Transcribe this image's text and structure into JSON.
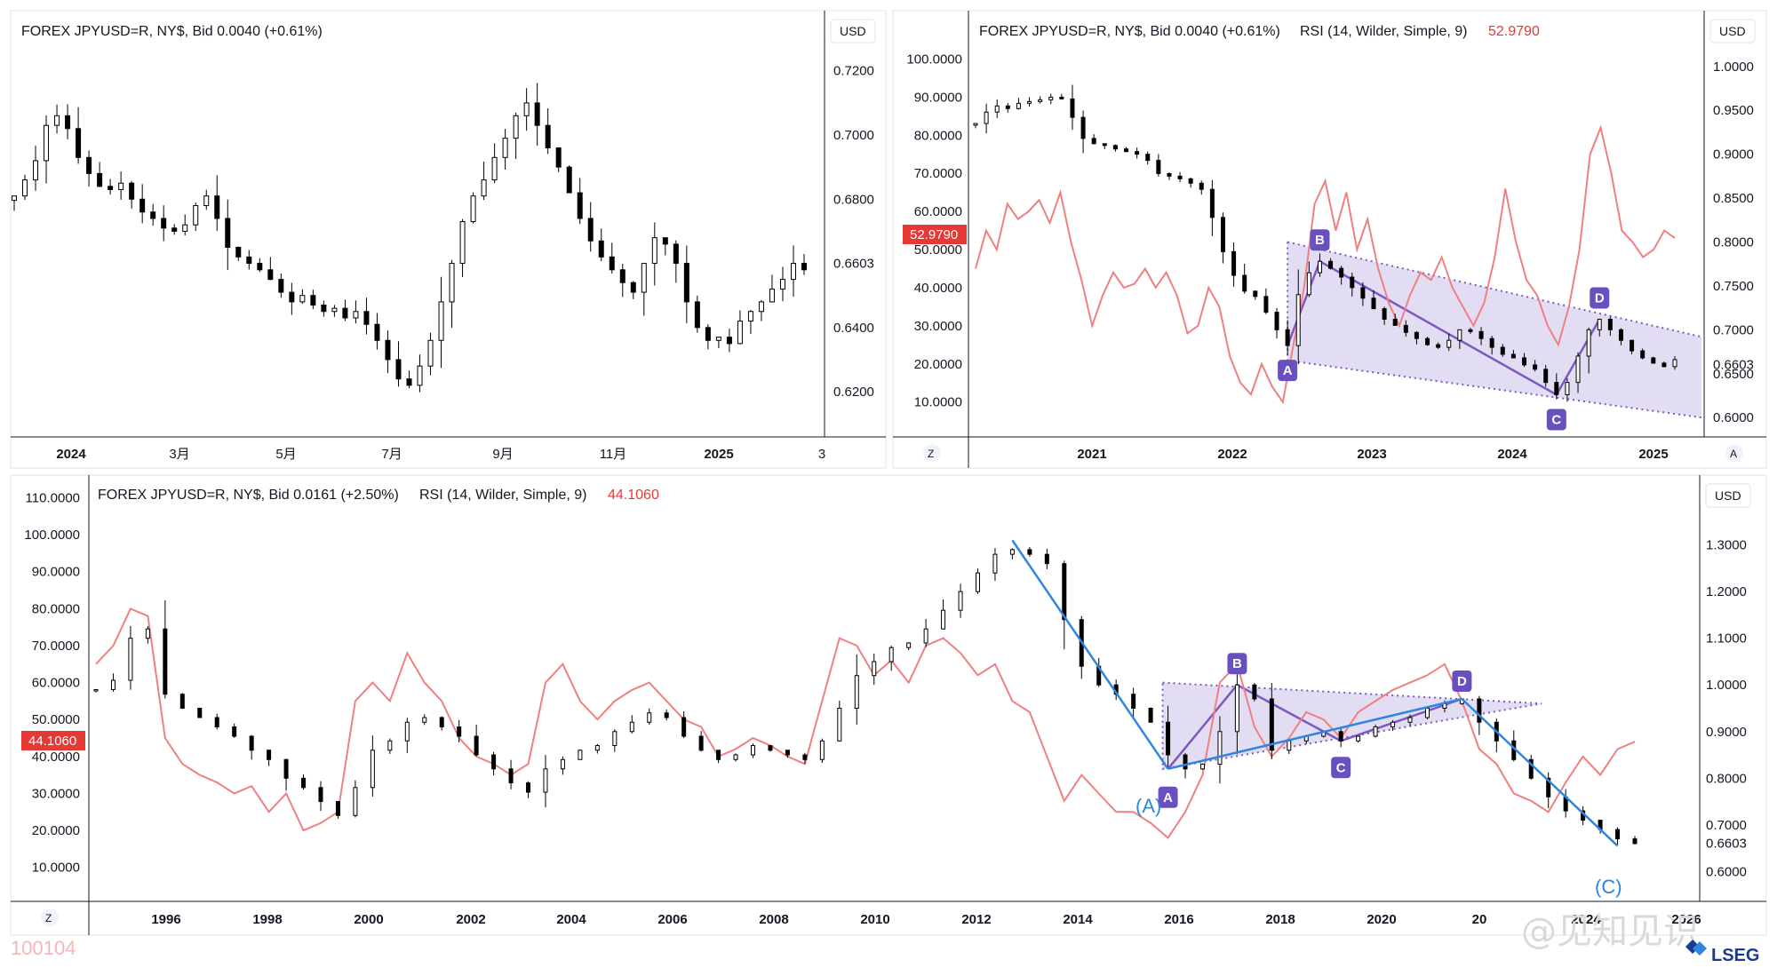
{
  "colors": {
    "candle": "#000000",
    "rsi": "#f08080",
    "pattern_fill": "#d9d2f0",
    "pattern_line": "#7e57c2",
    "point_marker": "#6a4fc1",
    "trend_line": "#2e86de",
    "rsi_badge": "#e53935"
  },
  "watermark": "100104",
  "weibo_watermark": "@见知见识",
  "brand": "LSEG",
  "chart_data": [
    {
      "type": "candlestick",
      "id": "panel_top_left",
      "title": "FOREX JPYUSD=R, NY$, Bid  0.0040 (+0.61%)",
      "currency": "USD",
      "x_labels": [
        "2024",
        "3月",
        "5月",
        "7月",
        "9月",
        "11月",
        "2025",
        "3"
      ],
      "x_labels_bold": [
        true,
        false,
        false,
        false,
        false,
        false,
        true,
        false
      ],
      "y_ticks": [
        0.62,
        0.64,
        0.66,
        0.68,
        0.7,
        0.72
      ],
      "y_tick_labels": [
        "0.6200",
        "0.6400",
        "0.6603",
        "0.6800",
        "0.7000",
        "0.7200"
      ],
      "ylim": [
        0.612,
        0.731
      ],
      "last_value": "0.6603",
      "series_close": [
        0.681,
        0.686,
        0.692,
        0.703,
        0.706,
        0.702,
        0.693,
        0.688,
        0.684,
        0.683,
        0.685,
        0.68,
        0.676,
        0.674,
        0.671,
        0.67,
        0.672,
        0.678,
        0.681,
        0.674,
        0.665,
        0.662,
        0.66,
        0.658,
        0.655,
        0.651,
        0.648,
        0.65,
        0.647,
        0.645,
        0.646,
        0.643,
        0.645,
        0.641,
        0.636,
        0.63,
        0.624,
        0.622,
        0.628,
        0.636,
        0.648,
        0.66,
        0.673,
        0.681,
        0.686,
        0.693,
        0.699,
        0.706,
        0.71,
        0.703,
        0.696,
        0.69,
        0.682,
        0.674,
        0.667,
        0.662,
        0.658,
        0.654,
        0.651,
        0.66,
        0.668,
        0.666,
        0.66,
        0.648,
        0.64,
        0.636,
        0.637,
        0.635,
        0.642,
        0.645,
        0.648,
        0.652,
        0.655,
        0.66,
        0.658
      ]
    },
    {
      "type": "candlestick+rsi",
      "id": "panel_top_right",
      "title": "FOREX JPYUSD=R, NY$, Bid  0.0040 (+0.61%)",
      "rsi_label": "RSI (14, Wilder, Simple, 9)",
      "rsi_value": "52.9790",
      "currency": "USD",
      "x_labels": [
        "2021",
        "2022",
        "2023",
        "2024",
        "2025"
      ],
      "left_axis_labels": [
        "100.0000",
        "90.0000",
        "80.0000",
        "70.0000",
        "60.0000",
        "50.0000",
        "40.0000",
        "30.0000",
        "20.0000",
        "10.0000"
      ],
      "left_axis_values": [
        100,
        90,
        80,
        70,
        60,
        50,
        40,
        30,
        20,
        10
      ],
      "rsi_lim": [
        2,
        105
      ],
      "y_ticks": [
        0.6,
        0.65,
        0.6603,
        0.7,
        0.75,
        0.8,
        0.85,
        0.9,
        0.95,
        1.0
      ],
      "y_tick_labels": [
        "0.6000",
        "0.6500",
        "0.6603",
        "0.7000",
        "0.7500",
        "0.8000",
        "0.8500",
        "0.9000",
        "0.9500",
        "1.0000"
      ],
      "ylim": [
        0.585,
        1.015
      ],
      "last_value": "0.6603",
      "series_close": [
        0.935,
        0.948,
        0.955,
        0.952,
        0.958,
        0.96,
        0.962,
        0.965,
        0.963,
        0.942,
        0.918,
        0.912,
        0.91,
        0.906,
        0.903,
        0.9,
        0.893,
        0.878,
        0.875,
        0.872,
        0.867,
        0.86,
        0.828,
        0.789,
        0.762,
        0.744,
        0.738,
        0.72,
        0.7,
        0.682,
        0.74,
        0.765,
        0.778,
        0.77,
        0.76,
        0.748,
        0.736,
        0.724,
        0.712,
        0.705,
        0.697,
        0.69,
        0.683,
        0.68,
        0.688,
        0.7,
        0.698,
        0.69,
        0.68,
        0.672,
        0.668,
        0.66,
        0.655,
        0.64,
        0.626,
        0.64,
        0.67,
        0.7,
        0.712,
        0.7,
        0.688,
        0.676,
        0.668,
        0.662,
        0.658,
        0.666
      ],
      "rsi_series": [
        45,
        55,
        50,
        62,
        58,
        60,
        63,
        57,
        65,
        52,
        42,
        30,
        38,
        44,
        40,
        41,
        45,
        40,
        44,
        38,
        28,
        30,
        40,
        35,
        22,
        15,
        12,
        20,
        14,
        10,
        25,
        40,
        62,
        68,
        55,
        65,
        50,
        58,
        45,
        36,
        30,
        38,
        44,
        42,
        48,
        40,
        35,
        30,
        36,
        48,
        66,
        52,
        42,
        38,
        30,
        25,
        35,
        50,
        75,
        82,
        70,
        55,
        52,
        48,
        50,
        55,
        53
      ],
      "pattern_points": [
        {
          "label": "A",
          "x_index": 29,
          "y": 0.682
        },
        {
          "label": "B",
          "x_index": 32,
          "y": 0.778
        },
        {
          "label": "C",
          "x_index": 54,
          "y": 0.626
        },
        {
          "label": "D",
          "x_index": 58,
          "y": 0.712
        }
      ]
    },
    {
      "type": "candlestick+rsi",
      "id": "panel_bottom",
      "title": "FOREX JPYUSD=R, NY$, Bid  0.0161 (+2.50%)",
      "rsi_label": "RSI (14, Wilder, Simple, 9)",
      "rsi_value": "44.1060",
      "currency": "USD",
      "x_labels": [
        "1996",
        "1998",
        "2000",
        "2002",
        "2004",
        "2006",
        "2008",
        "2010",
        "2012",
        "2014",
        "2016",
        "2018",
        "2020",
        "20",
        "2024",
        "2026"
      ],
      "left_axis_labels": [
        "110.0000",
        "100.0000",
        "90.0000",
        "80.0000",
        "70.0000",
        "60.0000",
        "50.0000",
        "40.0000",
        "30.0000",
        "20.0000",
        "10.0000"
      ],
      "left_axis_values": [
        110,
        100,
        90,
        80,
        70,
        60,
        50,
        40,
        30,
        20,
        10
      ],
      "rsi_lim": [
        2,
        113
      ],
      "y_ticks": [
        0.6,
        0.6603,
        0.7,
        0.8,
        0.9,
        1.0,
        1.1,
        1.2,
        1.3
      ],
      "y_tick_labels": [
        "0.6000",
        "0.6603",
        "0.7000",
        "0.8000",
        "0.9000",
        "1.0000",
        "1.1000",
        "1.2000",
        "1.3000"
      ],
      "ylim": [
        0.555,
        1.345
      ],
      "last_value": "0.6603",
      "series_close": [
        0.99,
        1.01,
        1.1,
        1.12,
        0.98,
        0.95,
        0.93,
        0.91,
        0.89,
        0.86,
        0.84,
        0.8,
        0.78,
        0.75,
        0.72,
        0.78,
        0.86,
        0.88,
        0.92,
        0.93,
        0.91,
        0.89,
        0.85,
        0.82,
        0.79,
        0.77,
        0.82,
        0.84,
        0.86,
        0.87,
        0.9,
        0.92,
        0.94,
        0.93,
        0.89,
        0.86,
        0.84,
        0.85,
        0.87,
        0.86,
        0.85,
        0.84,
        0.88,
        0.95,
        1.02,
        1.05,
        1.08,
        1.09,
        1.12,
        1.16,
        1.2,
        1.24,
        1.28,
        1.29,
        1.28,
        1.26,
        1.14,
        1.04,
        1.0,
        0.98,
        0.95,
        0.92,
        0.85,
        0.82,
        0.83,
        0.9,
        1.0,
        0.97,
        0.86,
        0.88,
        0.89,
        0.9,
        0.88,
        0.89,
        0.91,
        0.92,
        0.93,
        0.95,
        0.96,
        0.97,
        0.92,
        0.88,
        0.84,
        0.8,
        0.76,
        0.73,
        0.71,
        0.69,
        0.67,
        0.66
      ],
      "rsi_series": [
        65,
        70,
        80,
        78,
        45,
        38,
        35,
        33,
        30,
        32,
        25,
        30,
        20,
        22,
        25,
        55,
        60,
        55,
        68,
        60,
        55,
        45,
        40,
        38,
        35,
        38,
        60,
        65,
        55,
        50,
        55,
        58,
        60,
        55,
        50,
        48,
        40,
        42,
        45,
        43,
        40,
        38,
        55,
        72,
        70,
        62,
        66,
        60,
        70,
        72,
        68,
        62,
        65,
        55,
        52,
        40,
        28,
        35,
        30,
        25,
        25,
        22,
        18,
        25,
        35,
        60,
        65,
        48,
        40,
        45,
        52,
        50,
        45,
        52,
        55,
        58,
        60,
        62,
        65,
        55,
        42,
        38,
        30,
        28,
        25,
        33,
        40,
        35,
        42,
        44
      ],
      "pattern_points": [
        {
          "label": "A",
          "x_index": 62,
          "y": 0.82
        },
        {
          "label": "B",
          "x_index": 66,
          "y": 1.0
        },
        {
          "label": "C",
          "x_index": 72,
          "y": 0.88
        },
        {
          "label": "D",
          "x_index": 79,
          "y": 0.97
        }
      ],
      "wave_labels": [
        "(A)",
        "(C)"
      ]
    }
  ]
}
